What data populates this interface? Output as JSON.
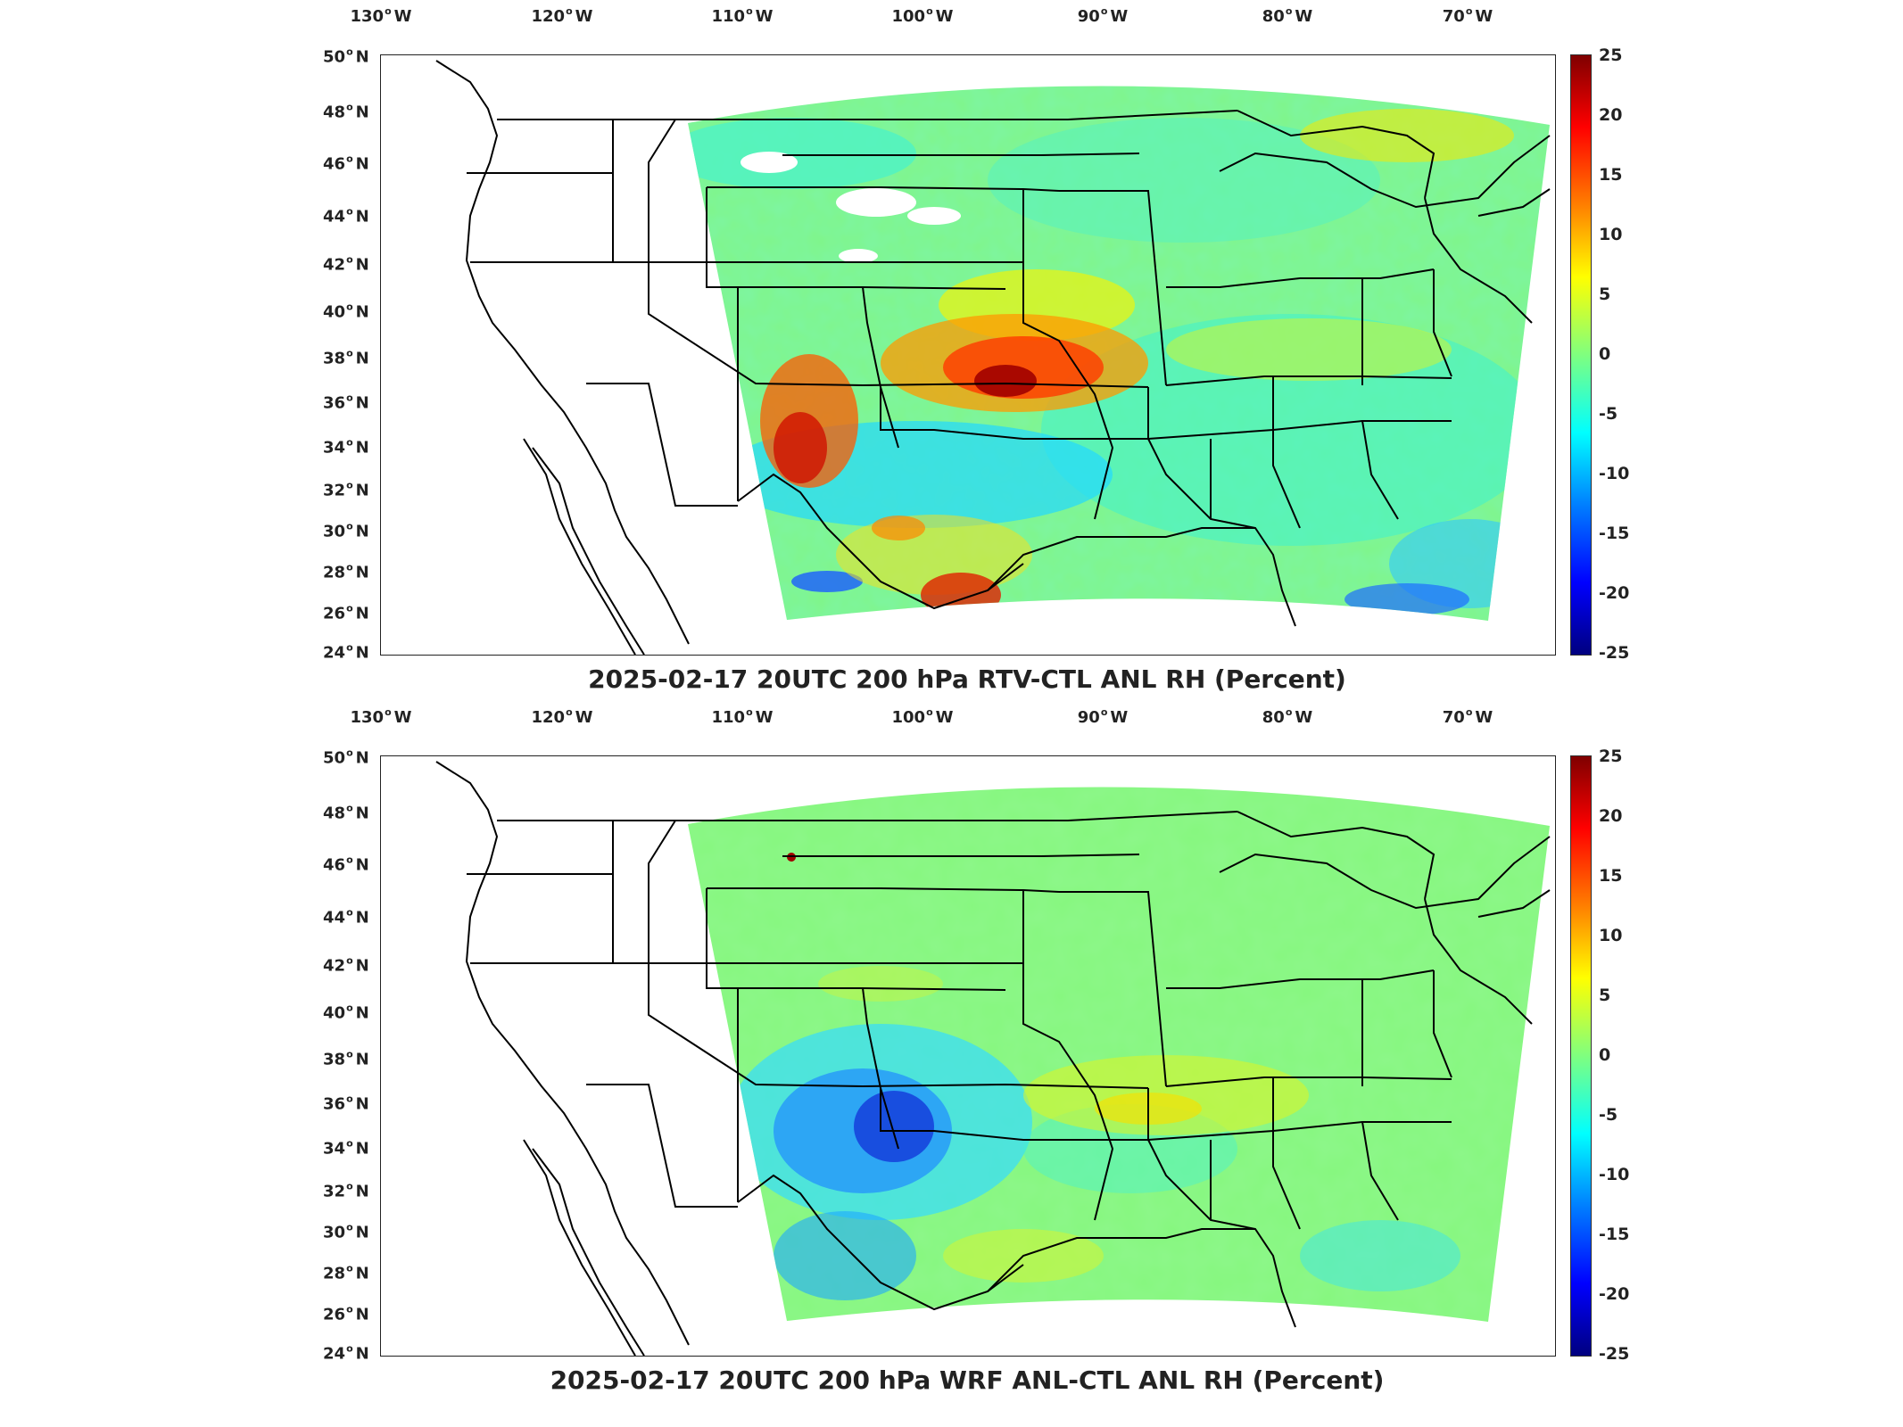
{
  "panels": [
    {
      "title": "2025-02-17 20UTC 200 hPa RTV-CTL ANL RH (Percent)",
      "variant": "rtv"
    },
    {
      "title": "2025-02-17 20UTC 200 hPa WRF ANL-CTL ANL RH (Percent)",
      "variant": "wrf"
    }
  ],
  "lon_ticks": [
    {
      "value": "130",
      "hemi": "W"
    },
    {
      "value": "120",
      "hemi": "W"
    },
    {
      "value": "110",
      "hemi": "W"
    },
    {
      "value": "100",
      "hemi": "W"
    },
    {
      "value": "90",
      "hemi": "W"
    },
    {
      "value": "80",
      "hemi": "W"
    },
    {
      "value": "70",
      "hemi": "W"
    }
  ],
  "lat_ticks": [
    {
      "value": "50",
      "hemi": "N"
    },
    {
      "value": "48",
      "hemi": "N"
    },
    {
      "value": "46",
      "hemi": "N"
    },
    {
      "value": "44",
      "hemi": "N"
    },
    {
      "value": "42",
      "hemi": "N"
    },
    {
      "value": "40",
      "hemi": "N"
    },
    {
      "value": "38",
      "hemi": "N"
    },
    {
      "value": "36",
      "hemi": "N"
    },
    {
      "value": "34",
      "hemi": "N"
    },
    {
      "value": "32",
      "hemi": "N"
    },
    {
      "value": "30",
      "hemi": "N"
    },
    {
      "value": "28",
      "hemi": "N"
    },
    {
      "value": "26",
      "hemi": "N"
    },
    {
      "value": "24",
      "hemi": "N"
    }
  ],
  "colorbar": {
    "ticks": [
      "25",
      "20",
      "15",
      "10",
      "5",
      "0",
      "-5",
      "-10",
      "-15",
      "-20",
      "-25"
    ],
    "range": [
      -25,
      25
    ],
    "colormap": "jet",
    "colors": [
      "#00007f",
      "#0000ff",
      "#007fff",
      "#00ffff",
      "#7fff7f",
      "#ffff00",
      "#ff7f00",
      "#ff0000",
      "#7f0000"
    ]
  },
  "map": {
    "projection": "lambert-conformal",
    "lon_range": [
      -131,
      -64
    ],
    "lat_range": [
      24,
      50
    ]
  }
}
